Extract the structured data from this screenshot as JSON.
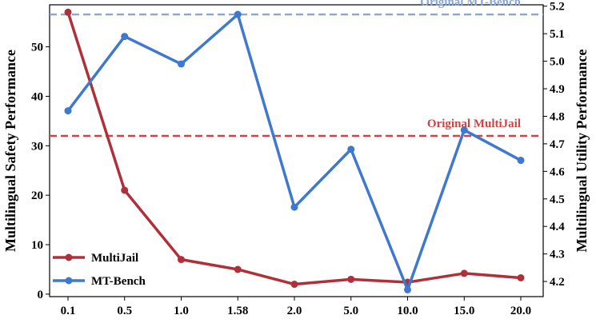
{
  "chart_data": {
    "type": "line",
    "categories": [
      "0.1",
      "0.5",
      "1.0",
      "1.58",
      "2.0",
      "5.0",
      "10.0",
      "15.0",
      "20.0"
    ],
    "series": [
      {
        "name": "MultiJail",
        "axis": "left",
        "color": "#b0303a",
        "values": [
          57.0,
          21.0,
          7.0,
          5.0,
          2.0,
          3.0,
          2.4,
          4.2,
          3.3
        ]
      },
      {
        "name": "MT-Bench",
        "axis": "right",
        "color": "#3f78cf",
        "values": [
          4.82,
          5.09,
          4.99,
          5.17,
          4.47,
          4.68,
          4.17,
          4.75,
          4.64
        ]
      }
    ],
    "ylabel_left": "Multilingual Safety Performance",
    "ylabel_right": "Multilingual Utility Performance",
    "ylim_left": [
      -0.5,
      58.5
    ],
    "ylim_right": [
      4.145,
      5.205
    ],
    "yticks_left": [
      "0",
      "10",
      "20",
      "30",
      "40",
      "50"
    ],
    "yticks_right": [
      "4.2",
      "4.3",
      "4.4",
      "4.5",
      "4.6",
      "4.7",
      "4.8",
      "4.9",
      "5.0",
      "5.1",
      "5.2"
    ],
    "reference_lines": [
      {
        "label": "Original MT-Bench",
        "axis": "right",
        "value": 5.17,
        "color": "#8aa6d2"
      },
      {
        "label": "Original MultiJail",
        "axis": "left",
        "value": 32.0,
        "color": "#cc4444"
      }
    ],
    "legend": {
      "position": "bottom-left",
      "entries": [
        "MultiJail",
        "MT-Bench"
      ]
    },
    "grid": false
  }
}
